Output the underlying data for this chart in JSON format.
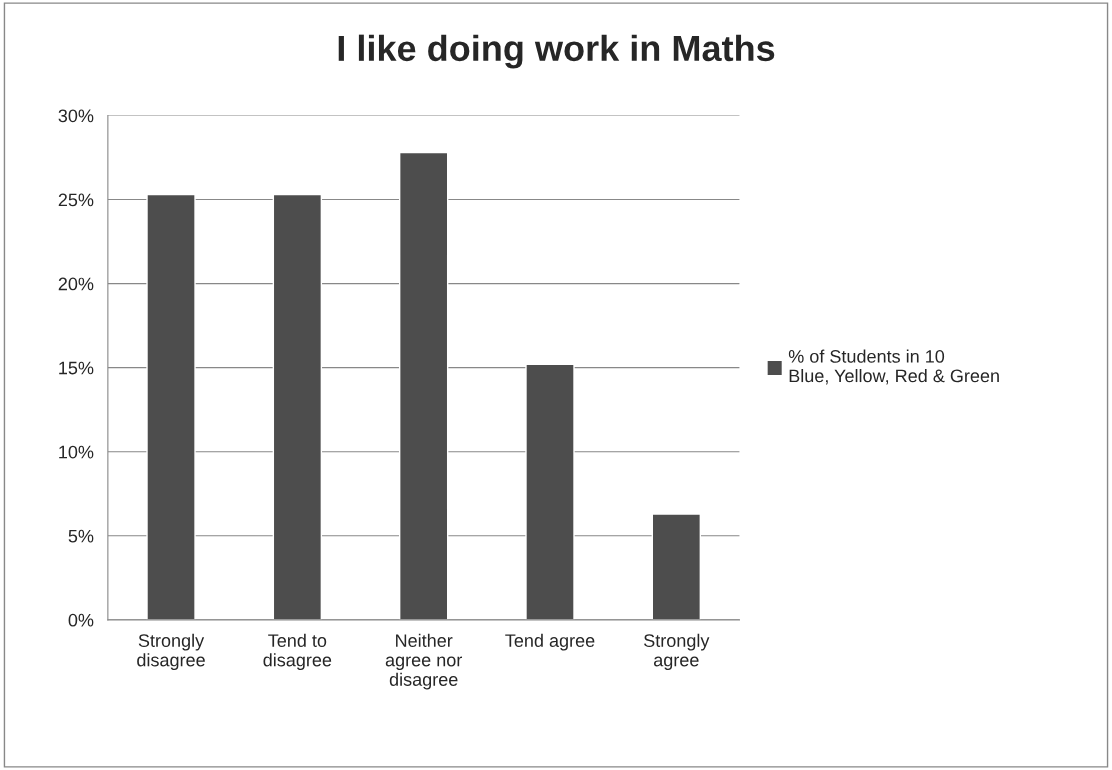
{
  "chart_data": {
    "type": "bar",
    "title": "I like doing work in Maths",
    "categories": [
      "Strongly\ndisagree",
      "Tend to\ndisagree",
      "Neither\nagree nor\ndisagree",
      "Tend agree",
      "Strongly\nagree"
    ],
    "series": [
      {
        "name": "% of Students in 10\nBlue, Yellow, Red & Green",
        "color": "#4d4d4d",
        "values": [
          25.3,
          25.3,
          27.8,
          15.2,
          6.3
        ]
      }
    ],
    "ylim": [
      0,
      30
    ],
    "yticks": [
      {
        "value": 0,
        "label": "0%"
      },
      {
        "value": 5,
        "label": "5%"
      },
      {
        "value": 10,
        "label": "10%"
      },
      {
        "value": 15,
        "label": "15%"
      },
      {
        "value": 20,
        "label": "20%"
      },
      {
        "value": 25,
        "label": "25%"
      },
      {
        "value": 30,
        "label": "30%"
      }
    ],
    "grid": "y",
    "legend": "right"
  }
}
